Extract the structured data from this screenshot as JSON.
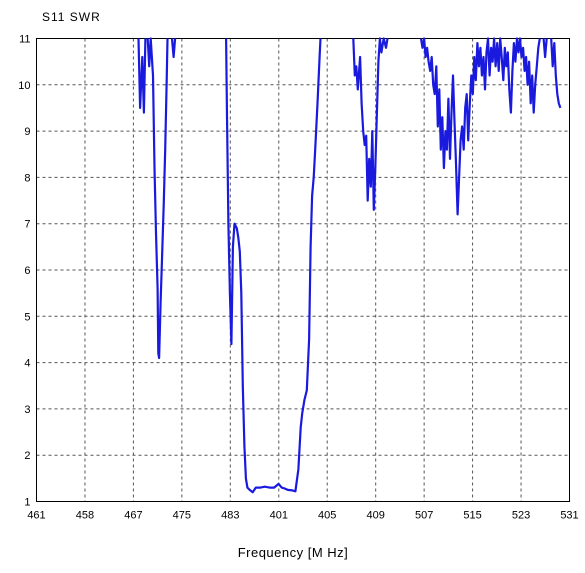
{
  "chart_data": {
    "type": "line",
    "title": "S11 SWR",
    "xlabel": "Frequency [M Hz]",
    "ylabel": "",
    "xlim": [
      461,
      531
    ],
    "ylim": [
      1,
      11
    ],
    "x_tick_labels": [
      "461",
      "458",
      "467",
      "475",
      "483",
      "401",
      "405",
      "409",
      "507",
      "515",
      "523",
      "531"
    ],
    "y_ticks": [
      1,
      2,
      3,
      4,
      5,
      6,
      7,
      8,
      9,
      10,
      11
    ],
    "y_tick_labels": [
      "1",
      "2",
      "3",
      "4",
      "5",
      "6",
      "7",
      "8",
      "9",
      "10",
      "11"
    ],
    "grid": true,
    "series": [
      {
        "color": "#1a1adf",
        "segments": [
          [
            [
              474.4,
              11
            ],
            [
              474.6,
              9.5
            ],
            [
              474.9,
              10.6
            ],
            [
              475.1,
              9.4
            ],
            [
              475.3,
              11
            ]
          ],
          [
            [
              475.6,
              11
            ],
            [
              475.8,
              10.4
            ],
            [
              476.0,
              11
            ],
            [
              476.3,
              10.2
            ],
            [
              476.5,
              8.2
            ],
            [
              476.7,
              6.8
            ],
            [
              476.9,
              5.6
            ],
            [
              477.0,
              4.2
            ],
            [
              477.1,
              4.1
            ],
            [
              477.3,
              5.3
            ],
            [
              477.5,
              6.3
            ],
            [
              477.7,
              7.4
            ],
            [
              477.9,
              8.6
            ],
            [
              478.1,
              10.1
            ],
            [
              478.2,
              11
            ]
          ],
          [
            [
              478.8,
              11
            ],
            [
              479.0,
              10.6
            ],
            [
              479.2,
              11
            ]
          ],
          [
            [
              485.9,
              11
            ],
            [
              486.0,
              9.5
            ],
            [
              486.2,
              7.0
            ],
            [
              486.4,
              5.5
            ],
            [
              486.6,
              4.4
            ],
            [
              486.8,
              6.5
            ],
            [
              487.0,
              7.0
            ],
            [
              487.3,
              6.9
            ],
            [
              487.5,
              6.7
            ],
            [
              487.7,
              6.4
            ],
            [
              487.9,
              5.5
            ],
            [
              488.1,
              3.5
            ],
            [
              488.3,
              2.2
            ],
            [
              488.5,
              1.5
            ],
            [
              488.7,
              1.3
            ],
            [
              489.0,
              1.25
            ],
            [
              489.4,
              1.2
            ],
            [
              489.8,
              1.3
            ],
            [
              490.4,
              1.3
            ],
            [
              491.0,
              1.32
            ],
            [
              491.6,
              1.3
            ],
            [
              492.2,
              1.3
            ],
            [
              492.8,
              1.38
            ],
            [
              493.2,
              1.3
            ],
            [
              493.6,
              1.28
            ],
            [
              494.0,
              1.25
            ],
            [
              494.6,
              1.24
            ],
            [
              495.0,
              1.22
            ],
            [
              495.4,
              1.7
            ],
            [
              495.7,
              2.6
            ],
            [
              495.9,
              2.9
            ],
            [
              496.2,
              3.2
            ],
            [
              496.5,
              3.4
            ],
            [
              496.8,
              4.5
            ],
            [
              497.0,
              6.5
            ],
            [
              497.2,
              7.6
            ],
            [
              497.4,
              8.0
            ],
            [
              497.6,
              8.6
            ],
            [
              497.9,
              9.6
            ],
            [
              498.2,
              10.7
            ],
            [
              498.3,
              11
            ]
          ],
          [
            [
              502.6,
              11
            ],
            [
              502.8,
              10.2
            ],
            [
              503.0,
              10.4
            ],
            [
              503.2,
              9.9
            ],
            [
              503.5,
              10.6
            ],
            [
              503.7,
              9.6
            ],
            [
              503.9,
              9.0
            ],
            [
              504.1,
              8.7
            ],
            [
              504.3,
              8.9
            ],
            [
              504.5,
              7.5
            ],
            [
              504.7,
              8.4
            ],
            [
              504.9,
              7.8
            ],
            [
              505.1,
              9.0
            ],
            [
              505.3,
              7.3
            ],
            [
              505.5,
              8.2
            ],
            [
              505.7,
              9.4
            ],
            [
              505.9,
              10.5
            ],
            [
              506.1,
              11
            ],
            [
              506.3,
              10.7
            ],
            [
              506.6,
              11
            ],
            [
              506.9,
              10.8
            ],
            [
              507.1,
              11
            ]
          ],
          [
            [
              511.5,
              11
            ],
            [
              511.7,
              10.8
            ],
            [
              511.9,
              11
            ],
            [
              512.1,
              10.6
            ],
            [
              512.3,
              10.8
            ],
            [
              512.5,
              10.5
            ],
            [
              512.7,
              10.3
            ],
            [
              512.9,
              10.6
            ],
            [
              513.1,
              10.0
            ],
            [
              513.3,
              9.8
            ],
            [
              513.5,
              10.4
            ],
            [
              513.7,
              9.1
            ],
            [
              513.9,
              9.9
            ],
            [
              514.1,
              8.6
            ],
            [
              514.3,
              9.3
            ],
            [
              514.5,
              8.2
            ],
            [
              514.7,
              9.0
            ],
            [
              514.9,
              8.6
            ],
            [
              515.1,
              9.7
            ],
            [
              515.3,
              8.4
            ],
            [
              515.5,
              9.4
            ],
            [
              515.7,
              10.2
            ],
            [
              515.9,
              9.2
            ],
            [
              516.1,
              8.3
            ],
            [
              516.3,
              7.2
            ],
            [
              516.5,
              8.0
            ],
            [
              516.7,
              8.8
            ],
            [
              516.9,
              9.1
            ],
            [
              517.1,
              8.6
            ],
            [
              517.3,
              9.5
            ],
            [
              517.5,
              9.8
            ],
            [
              517.7,
              8.8
            ],
            [
              517.9,
              9.6
            ],
            [
              518.1,
              10.2
            ],
            [
              518.3,
              9.8
            ],
            [
              518.5,
              10.6
            ],
            [
              518.7,
              10.1
            ],
            [
              518.9,
              10.9
            ],
            [
              519.1,
              10.4
            ],
            [
              519.3,
              10.8
            ],
            [
              519.5,
              10.2
            ],
            [
              519.7,
              10.6
            ],
            [
              519.9,
              9.9
            ],
            [
              520.1,
              10.7
            ],
            [
              520.3,
              11
            ],
            [
              520.5,
              10.2
            ],
            [
              520.7,
              10.8
            ],
            [
              520.9,
              10.5
            ],
            [
              521.1,
              11
            ],
            [
              521.3,
              10.4
            ],
            [
              521.5,
              10.9
            ],
            [
              521.7,
              10.3
            ],
            [
              521.9,
              11
            ],
            [
              522.1,
              10.6
            ],
            [
              522.3,
              10.1
            ],
            [
              522.5,
              10.8
            ],
            [
              522.7,
              10.4
            ],
            [
              522.9,
              10.7
            ],
            [
              523.1,
              9.9
            ],
            [
              523.3,
              9.4
            ],
            [
              523.5,
              10.3
            ],
            [
              523.7,
              10.9
            ],
            [
              523.9,
              10.5
            ],
            [
              524.1,
              11
            ],
            [
              524.3,
              10.7
            ],
            [
              524.5,
              11
            ],
            [
              524.7,
              10.6
            ],
            [
              524.9,
              10.8
            ],
            [
              525.1,
              10.3
            ],
            [
              525.3,
              10.6
            ],
            [
              525.5,
              10.0
            ],
            [
              525.7,
              10.5
            ],
            [
              525.9,
              9.6
            ],
            [
              526.1,
              10.2
            ],
            [
              526.3,
              9.4
            ],
            [
              526.5,
              10.0
            ],
            [
              526.7,
              10.4
            ],
            [
              526.9,
              10.8
            ],
            [
              527.1,
              11
            ]
          ],
          [
            [
              527.6,
              11
            ],
            [
              527.8,
              10.6
            ],
            [
              528.0,
              11
            ]
          ],
          [
            [
              528.6,
              11
            ],
            [
              528.8,
              10.4
            ],
            [
              529.0,
              10.9
            ],
            [
              529.2,
              10.2
            ],
            [
              529.4,
              9.8
            ],
            [
              529.6,
              9.6
            ],
            [
              529.8,
              9.5
            ]
          ]
        ]
      }
    ]
  }
}
